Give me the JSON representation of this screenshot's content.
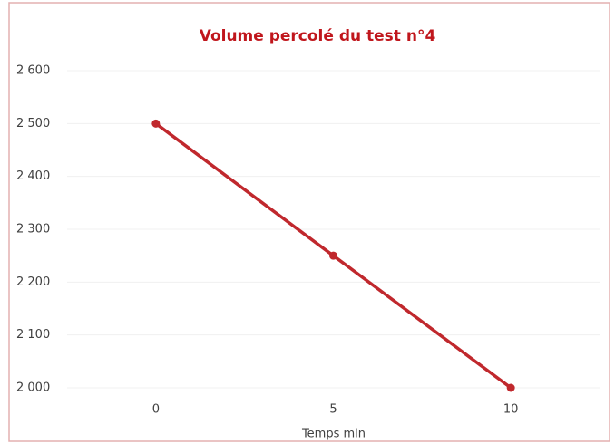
{
  "chart_data": {
    "type": "line",
    "title": "Volume percolé du test n°4",
    "x_label": "Temps min",
    "categories": [
      "0",
      "5",
      "10"
    ],
    "series": [
      {
        "name": "Volume",
        "color": "#c0282d",
        "values": [
          2500,
          2250,
          2000
        ]
      }
    ],
    "ylim": [
      2000,
      2600
    ],
    "yticks": [
      {
        "value": 2000,
        "label": "2 000"
      },
      {
        "value": 2100,
        "label": "2 100"
      },
      {
        "value": 2200,
        "label": "2 200"
      },
      {
        "value": 2300,
        "label": "2 300"
      },
      {
        "value": 2400,
        "label": "2 400"
      },
      {
        "value": 2500,
        "label": "2 500"
      },
      {
        "value": 2600,
        "label": "2 600"
      }
    ],
    "grid": true
  }
}
